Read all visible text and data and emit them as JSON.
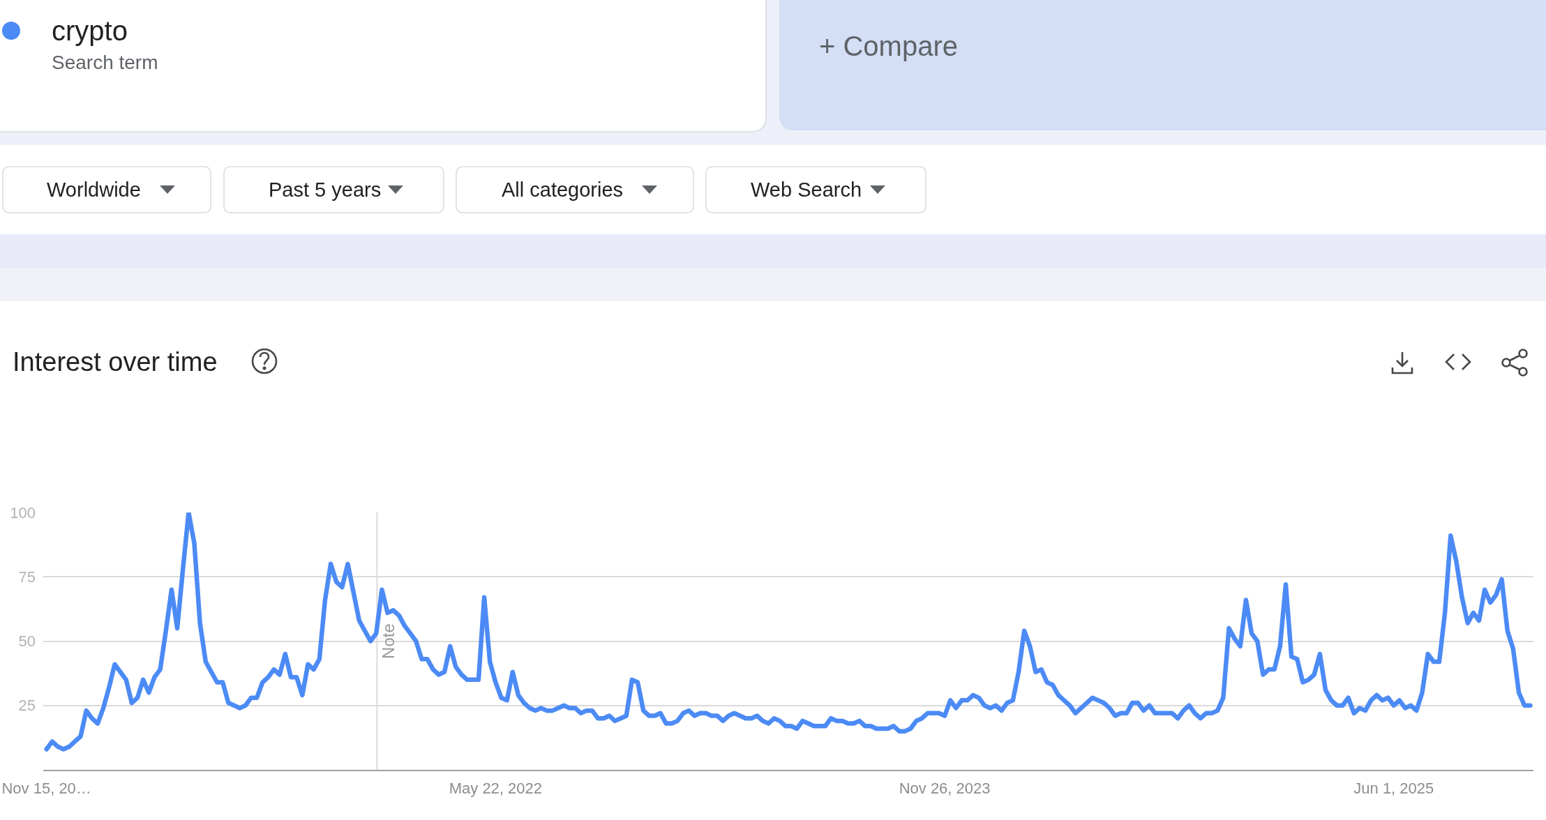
{
  "chart_data": {
    "type": "line",
    "title": "Interest over time",
    "x": [
      "2020-11-15",
      "2020-11-22",
      "2020-11-29",
      "2020-12-06",
      "2020-12-13",
      "2020-12-20",
      "2020-12-27",
      "2021-01-03",
      "2021-01-10",
      "2021-01-17",
      "2021-01-24",
      "2021-01-31",
      "2021-02-07",
      "2021-02-14",
      "2021-02-21",
      "2021-02-28",
      "2021-03-07",
      "2021-03-14",
      "2021-03-21",
      "2021-03-28",
      "2021-04-04",
      "2021-04-11",
      "2021-04-18",
      "2021-04-25",
      "2021-05-02",
      "2021-05-09",
      "2021-05-16",
      "2021-05-23",
      "2021-05-30",
      "2021-06-06",
      "2021-06-13",
      "2021-06-20",
      "2021-06-27",
      "2021-07-04",
      "2021-07-11",
      "2021-07-18",
      "2021-07-25",
      "2021-08-01",
      "2021-08-08",
      "2021-08-15",
      "2021-08-22",
      "2021-08-29",
      "2021-09-05",
      "2021-09-12",
      "2021-09-19",
      "2021-09-26",
      "2021-10-03",
      "2021-10-10",
      "2021-10-17",
      "2021-10-24",
      "2021-10-31",
      "2021-11-07",
      "2021-11-14",
      "2021-11-21",
      "2021-11-28",
      "2021-12-05",
      "2021-12-12",
      "2021-12-19",
      "2021-12-26",
      "2022-01-02",
      "2022-01-09",
      "2022-01-16",
      "2022-01-23",
      "2022-01-30",
      "2022-02-06",
      "2022-02-13",
      "2022-02-20",
      "2022-02-27",
      "2022-03-06",
      "2022-03-13",
      "2022-03-20",
      "2022-03-27",
      "2022-04-03",
      "2022-04-10",
      "2022-04-17",
      "2022-04-24",
      "2022-05-01",
      "2022-05-08",
      "2022-05-15",
      "2022-05-22",
      "2022-05-29",
      "2022-06-05",
      "2022-06-12",
      "2022-06-19",
      "2022-06-26",
      "2022-07-03",
      "2022-07-10",
      "2022-07-17",
      "2022-07-24",
      "2022-07-31",
      "2022-08-07",
      "2022-08-14",
      "2022-08-21",
      "2022-08-28",
      "2022-09-04",
      "2022-09-11",
      "2022-09-18",
      "2022-09-25",
      "2022-10-02",
      "2022-10-09",
      "2022-10-16",
      "2022-10-23",
      "2022-10-30",
      "2022-11-06",
      "2022-11-13",
      "2022-11-20",
      "2022-11-27",
      "2022-12-04",
      "2022-12-11",
      "2022-12-18",
      "2022-12-25",
      "2023-01-01",
      "2023-01-08",
      "2023-01-15",
      "2023-01-22",
      "2023-01-29",
      "2023-02-05",
      "2023-02-12",
      "2023-02-19",
      "2023-02-26",
      "2023-03-05",
      "2023-03-12",
      "2023-03-19",
      "2023-03-26",
      "2023-04-02",
      "2023-04-09",
      "2023-04-16",
      "2023-04-23",
      "2023-04-30",
      "2023-05-07",
      "2023-05-14",
      "2023-05-21",
      "2023-05-28",
      "2023-06-04",
      "2023-06-11",
      "2023-06-18",
      "2023-06-25",
      "2023-07-02",
      "2023-07-09",
      "2023-07-16",
      "2023-07-23",
      "2023-07-30",
      "2023-08-06",
      "2023-08-13",
      "2023-08-20",
      "2023-08-27",
      "2023-09-03",
      "2023-09-10",
      "2023-09-17",
      "2023-09-24",
      "2023-10-01",
      "2023-10-08",
      "2023-10-15",
      "2023-10-22",
      "2023-10-29",
      "2023-11-05",
      "2023-11-12",
      "2023-11-19",
      "2023-11-26",
      "2023-12-03",
      "2023-12-10",
      "2023-12-17",
      "2023-12-24",
      "2023-12-31",
      "2024-01-07",
      "2024-01-14",
      "2024-01-21",
      "2024-01-28",
      "2024-02-04",
      "2024-02-11",
      "2024-02-18",
      "2024-02-25",
      "2024-03-03",
      "2024-03-10",
      "2024-03-17",
      "2024-03-24",
      "2024-03-31",
      "2024-04-07",
      "2024-04-14",
      "2024-04-21",
      "2024-04-28",
      "2024-05-05",
      "2024-05-12",
      "2024-05-19",
      "2024-05-26",
      "2024-06-02",
      "2024-06-09",
      "2024-06-16",
      "2024-06-23",
      "2024-06-30",
      "2024-07-07",
      "2024-07-14",
      "2024-07-21",
      "2024-07-28",
      "2024-08-04",
      "2024-08-11",
      "2024-08-18",
      "2024-08-25",
      "2024-09-01",
      "2024-09-08",
      "2024-09-15",
      "2024-09-22",
      "2024-09-29",
      "2024-10-06",
      "2024-10-13",
      "2024-10-20",
      "2024-10-27",
      "2024-11-03",
      "2024-11-10",
      "2024-11-17",
      "2024-11-24",
      "2024-12-01",
      "2024-12-08",
      "2024-12-15",
      "2024-12-22",
      "2024-12-29",
      "2025-01-05",
      "2025-01-12",
      "2025-01-19",
      "2025-01-26",
      "2025-02-02",
      "2025-02-09",
      "2025-02-16",
      "2025-02-23",
      "2025-03-02",
      "2025-03-09",
      "2025-03-16",
      "2025-03-23",
      "2025-03-30",
      "2025-04-06",
      "2025-04-13",
      "2025-04-20",
      "2025-04-27",
      "2025-05-04",
      "2025-05-11",
      "2025-05-18",
      "2025-05-25",
      "2025-06-01",
      "2025-06-08",
      "2025-06-15",
      "2025-06-22",
      "2025-06-29",
      "2025-07-06",
      "2025-07-13",
      "2025-07-20",
      "2025-07-27",
      "2025-08-03",
      "2025-08-10",
      "2025-08-17",
      "2025-08-24",
      "2025-08-31",
      "2025-09-07",
      "2025-09-14",
      "2025-09-21",
      "2025-09-28",
      "2025-10-05",
      "2025-10-12",
      "2025-10-19",
      "2025-10-26",
      "2025-11-02",
      "2025-11-09",
      "2025-11-16"
    ],
    "series": [
      {
        "name": "crypto",
        "color": "#4c8bf5",
        "values": [
          8,
          11,
          9,
          8,
          9,
          11,
          13,
          23,
          20,
          18,
          24,
          32,
          41,
          38,
          35,
          26,
          28,
          35,
          30,
          36,
          39,
          54,
          70,
          55,
          78,
          100,
          88,
          57,
          42,
          38,
          34,
          34,
          26,
          25,
          24,
          25,
          28,
          28,
          34,
          36,
          39,
          37,
          45,
          36,
          36,
          29,
          41,
          39,
          43,
          66,
          80,
          73,
          71,
          80,
          69,
          58,
          54,
          50,
          53,
          70,
          61,
          62,
          60,
          56,
          53,
          50,
          43,
          43,
          39,
          37,
          38,
          48,
          40,
          37,
          35,
          35,
          35,
          67,
          42,
          34,
          28,
          27,
          38,
          29,
          26,
          24,
          23,
          24,
          23,
          23,
          24,
          25,
          24,
          24,
          22,
          23,
          23,
          20,
          20,
          21,
          19,
          20,
          21,
          35,
          34,
          23,
          21,
          21,
          22,
          18,
          18,
          19,
          22,
          23,
          21,
          22,
          22,
          21,
          21,
          19,
          21,
          22,
          21,
          20,
          20,
          21,
          19,
          18,
          20,
          19,
          17,
          17,
          16,
          19,
          18,
          17,
          17,
          17,
          20,
          19,
          19,
          18,
          18,
          19,
          17,
          17,
          16,
          16,
          16,
          17,
          15,
          15,
          16,
          19,
          20,
          22,
          22,
          22,
          21,
          27,
          24,
          27,
          27,
          29,
          28,
          25,
          24,
          25,
          23,
          26,
          27,
          38,
          54,
          48,
          38,
          39,
          34,
          33,
          29,
          27,
          25,
          22,
          24,
          26,
          28,
          27,
          26,
          24,
          21,
          22,
          22,
          26,
          26,
          23,
          25,
          22,
          22,
          22,
          22,
          20,
          23,
          25,
          22,
          20,
          22,
          22,
          23,
          28,
          55,
          51,
          48,
          66,
          53,
          50,
          37,
          39,
          39,
          48,
          72,
          44,
          43,
          34,
          35,
          37,
          45,
          31,
          27,
          25,
          25,
          28,
          22,
          24,
          23,
          27,
          29,
          27,
          28,
          25,
          27,
          24,
          25,
          23,
          30,
          45,
          42,
          42,
          61,
          91,
          81,
          67,
          57,
          61,
          58,
          70,
          65,
          68,
          74,
          54,
          47,
          30,
          25,
          25
        ]
      }
    ],
    "xlim": [
      "2020-11-11",
      "2025-11-20"
    ],
    "xticks": [
      {
        "value": "2020-11-15",
        "label": "Nov 15, 20…"
      },
      {
        "value": "2022-05-22",
        "label": "May 22, 2022"
      },
      {
        "value": "2023-11-26",
        "label": "Nov 26, 2023"
      },
      {
        "value": "2025-06-01",
        "label": "Jun 1, 2025"
      }
    ],
    "ylim": [
      0,
      100
    ],
    "yticks": [
      25,
      50,
      75,
      100
    ],
    "grid": "y",
    "legend": "top left",
    "line_style": "solid",
    "marker": "none",
    "ref_lines": [
      {
        "axis": "x",
        "value": "2021-12-27",
        "label": "Note",
        "color": "#d0d0d0"
      }
    ],
    "annotations": [
      "Search term",
      "+ Compare",
      "Worldwide",
      "Past 5 years",
      "All categories",
      "Web Search"
    ]
  }
}
